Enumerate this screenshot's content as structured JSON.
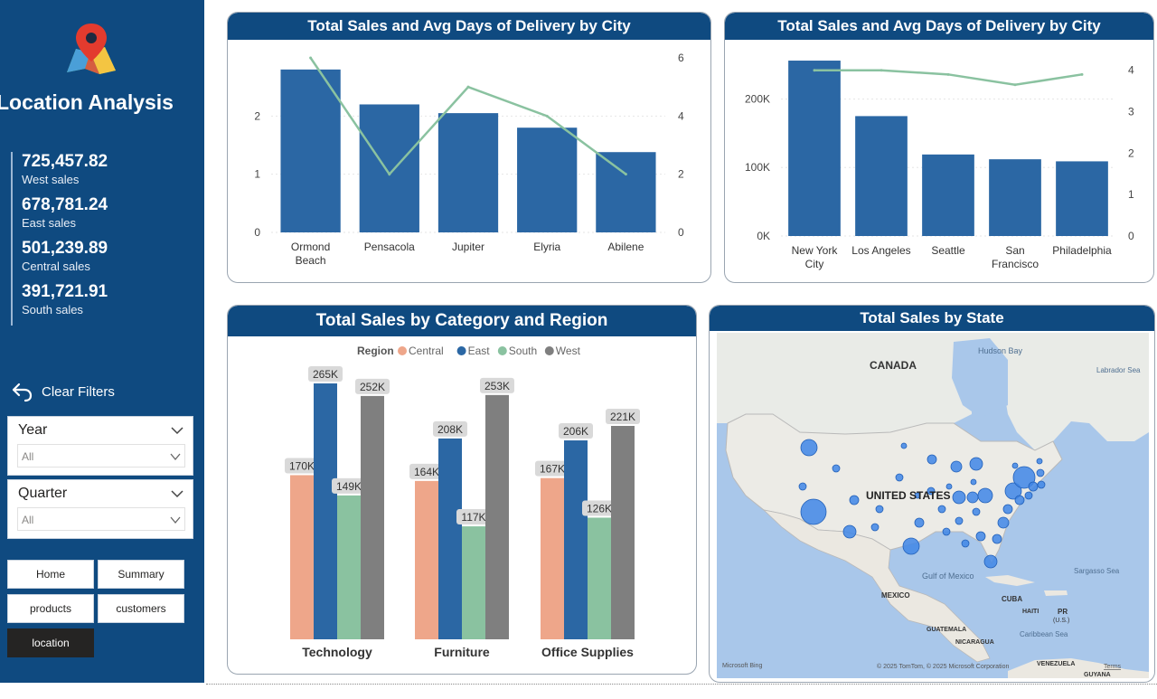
{
  "sidebar": {
    "page_title": "Location Analysis",
    "kpis": [
      {
        "value": "725,457.82",
        "label": "West sales"
      },
      {
        "value": "678,781.24",
        "label": "East sales"
      },
      {
        "value": "501,239.89",
        "label": "Central sales"
      },
      {
        "value": "391,721.91",
        "label": "South sales"
      }
    ],
    "clear_filters": "Clear Filters",
    "slicers": [
      {
        "title": "Year",
        "value": "All"
      },
      {
        "title": "Quarter",
        "value": "All"
      }
    ],
    "nav": [
      {
        "label": "Home",
        "active": false
      },
      {
        "label": "Summary",
        "active": false
      },
      {
        "label": "products",
        "active": false
      },
      {
        "label": "customers",
        "active": false
      },
      {
        "label": "location",
        "active": true
      }
    ],
    "icons": [
      "map-pin-icon",
      "undo-arrow-icon",
      "chevron-down-icon"
    ],
    "colors": {
      "sidebar_bg": "#0f4a80",
      "active_nav": "#252423"
    }
  },
  "chart_data": [
    {
      "type": "bar",
      "title": "Total Sales and Avg Days of Delivery by City",
      "categories": [
        "Ormond Beach",
        "Pensacola",
        "Jupiter",
        "Elyria",
        "Abilene"
      ],
      "series": [
        {
          "type": "bar",
          "axis": "left",
          "values": [
            2.8,
            2.2,
            2.05,
            1.8,
            1.38
          ],
          "color": "#2b67a4"
        },
        {
          "type": "line",
          "axis": "right",
          "values": [
            6,
            2,
            5,
            4,
            2
          ],
          "color": "#8ac2a0"
        }
      ],
      "y_left_ticks": [
        "0",
        "1",
        "2"
      ],
      "ylim_left": [
        0,
        3
      ],
      "y_right_ticks": [
        "0",
        "2",
        "4",
        "6"
      ],
      "ylim_right": [
        0,
        6
      ],
      "grid": true
    },
    {
      "type": "bar",
      "title": "Total Sales and Avg Days of Delivery by City",
      "categories": [
        "New York City",
        "Los Angeles",
        "Seattle",
        "San Francisco",
        "Philadelphia"
      ],
      "series": [
        {
          "type": "bar",
          "axis": "left",
          "values": [
            256000,
            175000,
            119000,
            112000,
            109000
          ],
          "color": "#2b67a4"
        },
        {
          "type": "line",
          "axis": "right",
          "values": [
            4.0,
            4.0,
            3.9,
            3.65,
            3.9
          ],
          "color": "#8ac2a0"
        }
      ],
      "y_left_ticks": [
        "0K",
        "100K",
        "200K"
      ],
      "ylim_left": [
        0,
        260000
      ],
      "y_right_ticks": [
        "0",
        "1",
        "2",
        "3",
        "4"
      ],
      "ylim_right": [
        0,
        4.3
      ],
      "grid": true
    },
    {
      "type": "bar",
      "title": "Total Sales by Category and Region",
      "legend_title": "Region",
      "legend_position": "top",
      "categories": [
        "Technology",
        "Furniture",
        "Office Supplies"
      ],
      "series": [
        {
          "name": "Central",
          "values": [
            170,
            164,
            167
          ],
          "labels": [
            "170K",
            "164K",
            "167K"
          ],
          "color": "#eea68a"
        },
        {
          "name": "East",
          "values": [
            265,
            208,
            206
          ],
          "labels": [
            "265K",
            "208K",
            "206K"
          ],
          "color": "#2b67a4"
        },
        {
          "name": "South",
          "values": [
            149,
            117,
            126
          ],
          "labels": [
            "149K",
            "117K",
            "126K"
          ],
          "color": "#8ac2a0"
        },
        {
          "name": "West",
          "values": [
            252,
            253,
            221
          ],
          "labels": [
            "252K",
            "253K",
            "221K"
          ],
          "color": "#7f7f7f"
        }
      ],
      "ylim": [
        0,
        280
      ],
      "grid": false
    }
  ],
  "map": {
    "title": "Total Sales by State",
    "labels": {
      "canada": "CANADA",
      "hudson_bay": "Hudson Bay",
      "labrador_sea": "Labrador Sea",
      "united_states": "UNITED STATES",
      "gulf": "Gulf of Mexico",
      "sargasso": "Sargasso Sea",
      "mexico": "MEXICO",
      "cuba": "CUBA",
      "haiti": "HAITI",
      "pr": "PR",
      "pr_sub": "(U.S.)",
      "guatemala": "GUATEMALA",
      "nicaragua": "NICARAGUA",
      "caribbean": "Caribbean Sea",
      "venezuela": "VENEZUELA",
      "guyana": "GUYANA"
    },
    "attribution": "© 2025 TomTom, © 2025 Microsoft Corporation",
    "terms": "Terms",
    "provider": "Microsoft Bing"
  }
}
